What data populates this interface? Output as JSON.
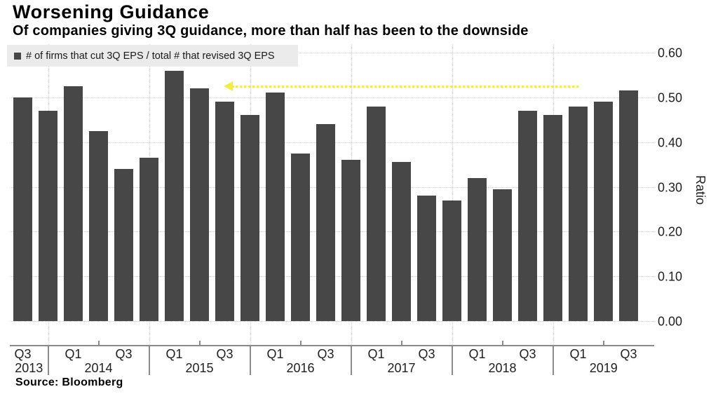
{
  "title": "Worsening Guidance",
  "subtitle": "Of companies giving 3Q guidance, more than half has been to the downside",
  "legend": {
    "label": "# of firms that cut 3Q EPS / total # that revised 3Q EPS"
  },
  "source": "Source: Bloomberg",
  "colors": {
    "bar": "#474747",
    "arrow": "#f2ee3a",
    "gridline": "#d2d2d2",
    "axis": "#8b8b8b",
    "legend_background": "#ebebeb",
    "text": "#1a1a1a"
  },
  "chart_data": {
    "type": "bar",
    "title": "Worsening Guidance",
    "subtitle": "Of companies giving 3Q guidance, more than half has been to the downside",
    "categories": [
      "Q3 2013",
      "Q4 2013",
      "Q1 2014",
      "Q2 2014",
      "Q3 2014",
      "Q4 2014",
      "Q1 2015",
      "Q2 2015",
      "Q3 2015",
      "Q4 2015",
      "Q1 2016",
      "Q2 2016",
      "Q3 2016",
      "Q4 2016",
      "Q1 2017",
      "Q2 2017",
      "Q3 2017",
      "Q4 2017",
      "Q1 2018",
      "Q2 2018",
      "Q3 2018",
      "Q4 2018",
      "Q1 2019",
      "Q2 2019",
      "Q3 2019"
    ],
    "values": [
      0.5,
      0.47,
      0.525,
      0.425,
      0.34,
      0.365,
      0.56,
      0.52,
      0.49,
      0.46,
      0.51,
      0.375,
      0.44,
      0.36,
      0.48,
      0.355,
      0.28,
      0.27,
      0.32,
      0.295,
      0.47,
      0.46,
      0.48,
      0.49,
      0.515
    ],
    "series_name": "# of firms that cut 3Q EPS / total # that revised 3Q EPS",
    "xlabel": "",
    "ylabel": "Ratio",
    "ylim": [
      0.0,
      0.6
    ],
    "y_ticks": [
      "0.00",
      "0.10",
      "0.20",
      "0.30",
      "0.40",
      "0.50",
      "0.60"
    ],
    "x_axis": {
      "quarter_labels_shown": [
        "Q1",
        "Q3"
      ],
      "year_labels": [
        "2013",
        "2014",
        "2015",
        "2016",
        "2017",
        "2018",
        "2019"
      ]
    },
    "grid": "horizontal dotted at 0.10 steps; vertical dotted at year boundaries",
    "legend_position": "top-left",
    "annotation": {
      "type": "arrow",
      "direction": "left",
      "style": "dotted",
      "color": "#f2ee3a",
      "y_value": 0.525,
      "from_category": "Q1 2019",
      "to_category": "Q3 2015"
    }
  }
}
